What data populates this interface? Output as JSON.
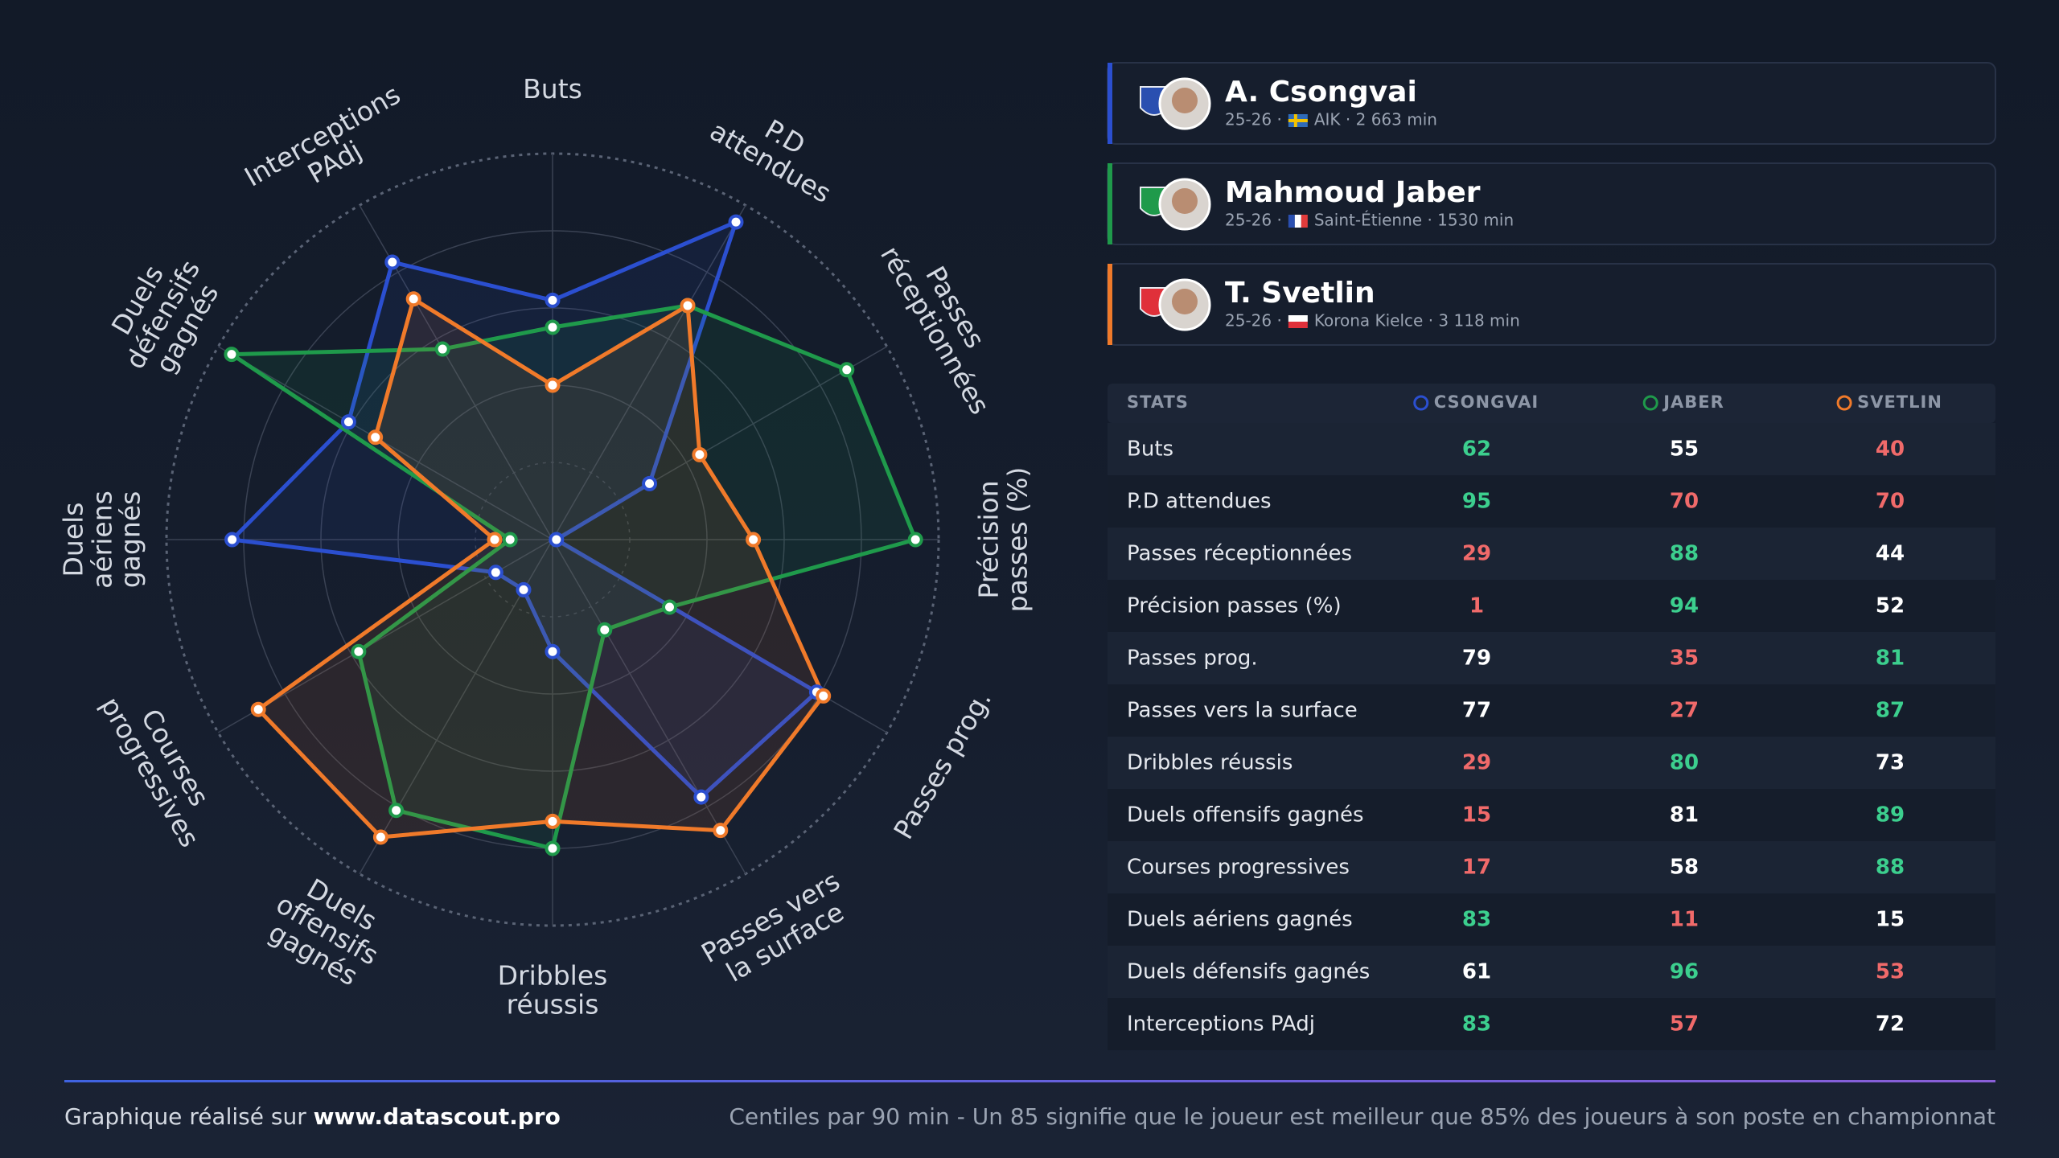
{
  "chart_data": {
    "type": "radar",
    "categories": [
      "Buts",
      "P.D attendues",
      "Passes réceptionnées",
      "Précision passes (%)",
      "Passes prog.",
      "Passes vers la surface",
      "Dribbles réussis",
      "Duels offensifs gagnés",
      "Courses progressives",
      "Duels aériens gagnés",
      "Duels défensifs gagnés",
      "Interceptions PAdj"
    ],
    "series": [
      {
        "name": "A. Csongvai",
        "color": "#2b4fd0",
        "values": [
          62,
          95,
          29,
          1,
          79,
          77,
          29,
          15,
          17,
          83,
          61,
          83
        ]
      },
      {
        "name": "Mahmoud Jaber",
        "color": "#1f9a4b",
        "values": [
          55,
          70,
          88,
          94,
          35,
          27,
          80,
          81,
          58,
          11,
          96,
          57
        ]
      },
      {
        "name": "T. Svetlin",
        "color": "#f07a2a",
        "values": [
          40,
          70,
          44,
          52,
          81,
          87,
          73,
          89,
          88,
          15,
          53,
          72
        ]
      }
    ],
    "rlim": [
      0,
      100
    ],
    "rticks": [
      20,
      40,
      60,
      80,
      100
    ]
  },
  "players": [
    {
      "season": "25-26 ·",
      "club": "AIK · 2 663 min"
    },
    {
      "season": "25-26 ·",
      "club": "Saint-Étienne · 1530 min"
    },
    {
      "season": "25-26 ·",
      "club": "Korona Kielce · 3 118 min"
    }
  ],
  "table": {
    "headers": [
      "STATS",
      "CSONGVAI",
      "JABER",
      "SVETLIN"
    ]
  },
  "footer": {
    "credit": "Graphique réalisé sur",
    "site": "www.datascout.pro",
    "note": "Centiles par 90 min - Un 85 signifie que le joueur est meilleur que 85% des joueurs à son poste en championnat"
  }
}
